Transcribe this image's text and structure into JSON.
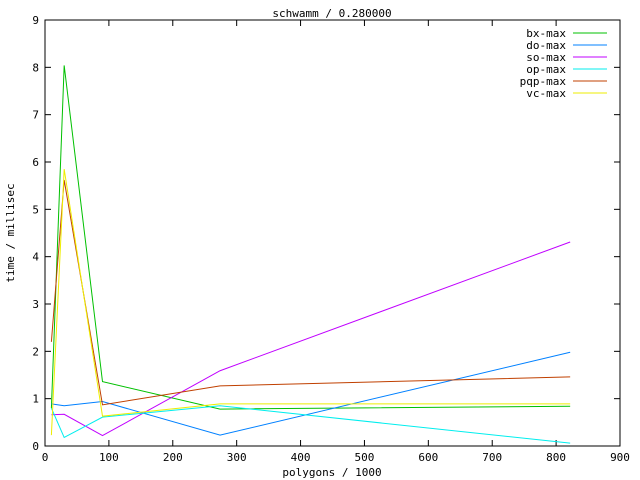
{
  "chart_data": {
    "type": "line",
    "title": "schwamm / 0.280000",
    "xlabel": "polygons / 1000",
    "ylabel": "time / millisec",
    "xlim": [
      0,
      900
    ],
    "ylim": [
      0,
      9
    ],
    "xticks": [
      "0",
      "100",
      "200",
      "300",
      "400",
      "500",
      "600",
      "700",
      "800",
      "900"
    ],
    "yticks": [
      "0",
      "1",
      "2",
      "3",
      "4",
      "5",
      "6",
      "7",
      "8",
      "9"
    ],
    "grid": false,
    "legend_position": "top-right",
    "x": [
      10,
      30,
      90,
      274,
      822
    ],
    "series": [
      {
        "name": "bx-max",
        "color": "#00c000",
        "values": [
          0.8,
          8.04,
          1.36,
          0.78,
          0.84
        ]
      },
      {
        "name": "do-max",
        "color": "#0080ff",
        "values": [
          0.89,
          0.85,
          0.94,
          0.23,
          1.98
        ]
      },
      {
        "name": "so-max",
        "color": "#c000ff",
        "values": [
          0.66,
          0.67,
          0.22,
          1.59,
          4.31
        ]
      },
      {
        "name": "op-max",
        "color": "#00eeee",
        "values": [
          0.8,
          0.18,
          0.61,
          0.85,
          0.06
        ]
      },
      {
        "name": "pqp-max",
        "color": "#c04000",
        "values": [
          2.2,
          5.62,
          0.87,
          1.27,
          1.46
        ]
      },
      {
        "name": "vc-max",
        "color": "#eeee00",
        "values": [
          0.23,
          5.85,
          0.63,
          0.89,
          0.89
        ]
      }
    ]
  }
}
